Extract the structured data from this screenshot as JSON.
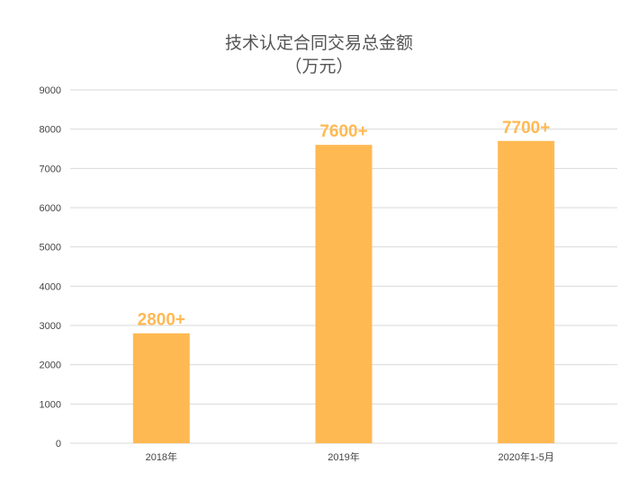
{
  "chart_data": {
    "type": "bar",
    "title": "技术认定合同交易总金额",
    "subtitle": "（万元）",
    "categories": [
      "2018年",
      "2019年",
      "2020年1-5月"
    ],
    "values": [
      2800,
      7600,
      7700
    ],
    "data_labels": [
      "2800+",
      "7600+",
      "7700+"
    ],
    "ylim": [
      0,
      9000
    ],
    "yticks": [
      0,
      1000,
      2000,
      3000,
      4000,
      5000,
      6000,
      7000,
      8000,
      9000
    ],
    "grid": true,
    "legend": "none",
    "bar_color": "#FFB952",
    "label_color": "#FFB952",
    "grid_color": "#D9D9D9"
  }
}
